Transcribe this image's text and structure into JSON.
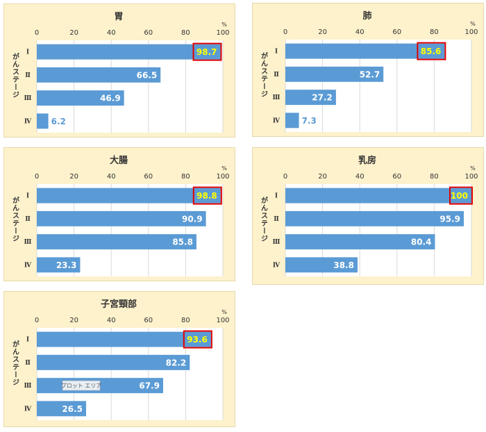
{
  "colors": {
    "panel_bg": "#fdf2cc",
    "plot_bg": "#ffffff",
    "bar": "#5b9bd5",
    "value_inside": "#ffffff",
    "value_outside": "#5b9bd5",
    "highlight_text": "#ffff00",
    "highlight_box": "#e00000",
    "grid": "#d9d9d9"
  },
  "tooltip": "プロット エリア",
  "chart_data": [
    {
      "type": "bar",
      "orientation": "horizontal",
      "title": "胃",
      "ylabel": "がんステージ",
      "unit": "%",
      "xlim": [
        0,
        100
      ],
      "ticks": [
        "0",
        "20",
        "40",
        "60",
        "80",
        "100"
      ],
      "categories": [
        "Ⅰ",
        "Ⅱ",
        "Ⅲ",
        "Ⅳ"
      ],
      "values": [
        98.7,
        66.5,
        46.9,
        6.2
      ],
      "highlight_index": 0
    },
    {
      "type": "bar",
      "orientation": "horizontal",
      "title": "肺",
      "ylabel": "がんステージ",
      "unit": "%",
      "xlim": [
        0,
        100
      ],
      "ticks": [
        "0",
        "20",
        "40",
        "60",
        "80",
        "100"
      ],
      "categories": [
        "Ⅰ",
        "Ⅱ",
        "Ⅲ",
        "Ⅳ"
      ],
      "values": [
        85.6,
        52.7,
        27.2,
        7.3
      ],
      "highlight_index": 0
    },
    {
      "type": "bar",
      "orientation": "horizontal",
      "title": "大腸",
      "ylabel": "がんステージ",
      "unit": "%",
      "xlim": [
        0,
        100
      ],
      "ticks": [
        "0",
        "20",
        "40",
        "60",
        "80",
        "100"
      ],
      "categories": [
        "Ⅰ",
        "Ⅱ",
        "Ⅲ",
        "Ⅳ"
      ],
      "values": [
        98.8,
        90.9,
        85.8,
        23.3
      ],
      "highlight_index": 0
    },
    {
      "type": "bar",
      "orientation": "horizontal",
      "title": "乳房",
      "ylabel": "がんステージ",
      "unit": "%",
      "xlim": [
        0,
        100
      ],
      "ticks": [
        "0",
        "20",
        "40",
        "60",
        "80",
        "100"
      ],
      "categories": [
        "Ⅰ",
        "Ⅱ",
        "Ⅲ",
        "Ⅳ"
      ],
      "values": [
        100,
        95.9,
        80.4,
        38.8
      ],
      "highlight_index": 0
    },
    {
      "type": "bar",
      "orientation": "horizontal",
      "title": "子宮頸部",
      "ylabel": "がんステージ",
      "unit": "%",
      "xlim": [
        0,
        100
      ],
      "ticks": [
        "0",
        "20",
        "40",
        "60",
        "80",
        "100"
      ],
      "categories": [
        "Ⅰ",
        "Ⅱ",
        "Ⅲ",
        "Ⅳ"
      ],
      "values": [
        93.6,
        82.2,
        67.9,
        26.5
      ],
      "highlight_index": 0
    }
  ]
}
